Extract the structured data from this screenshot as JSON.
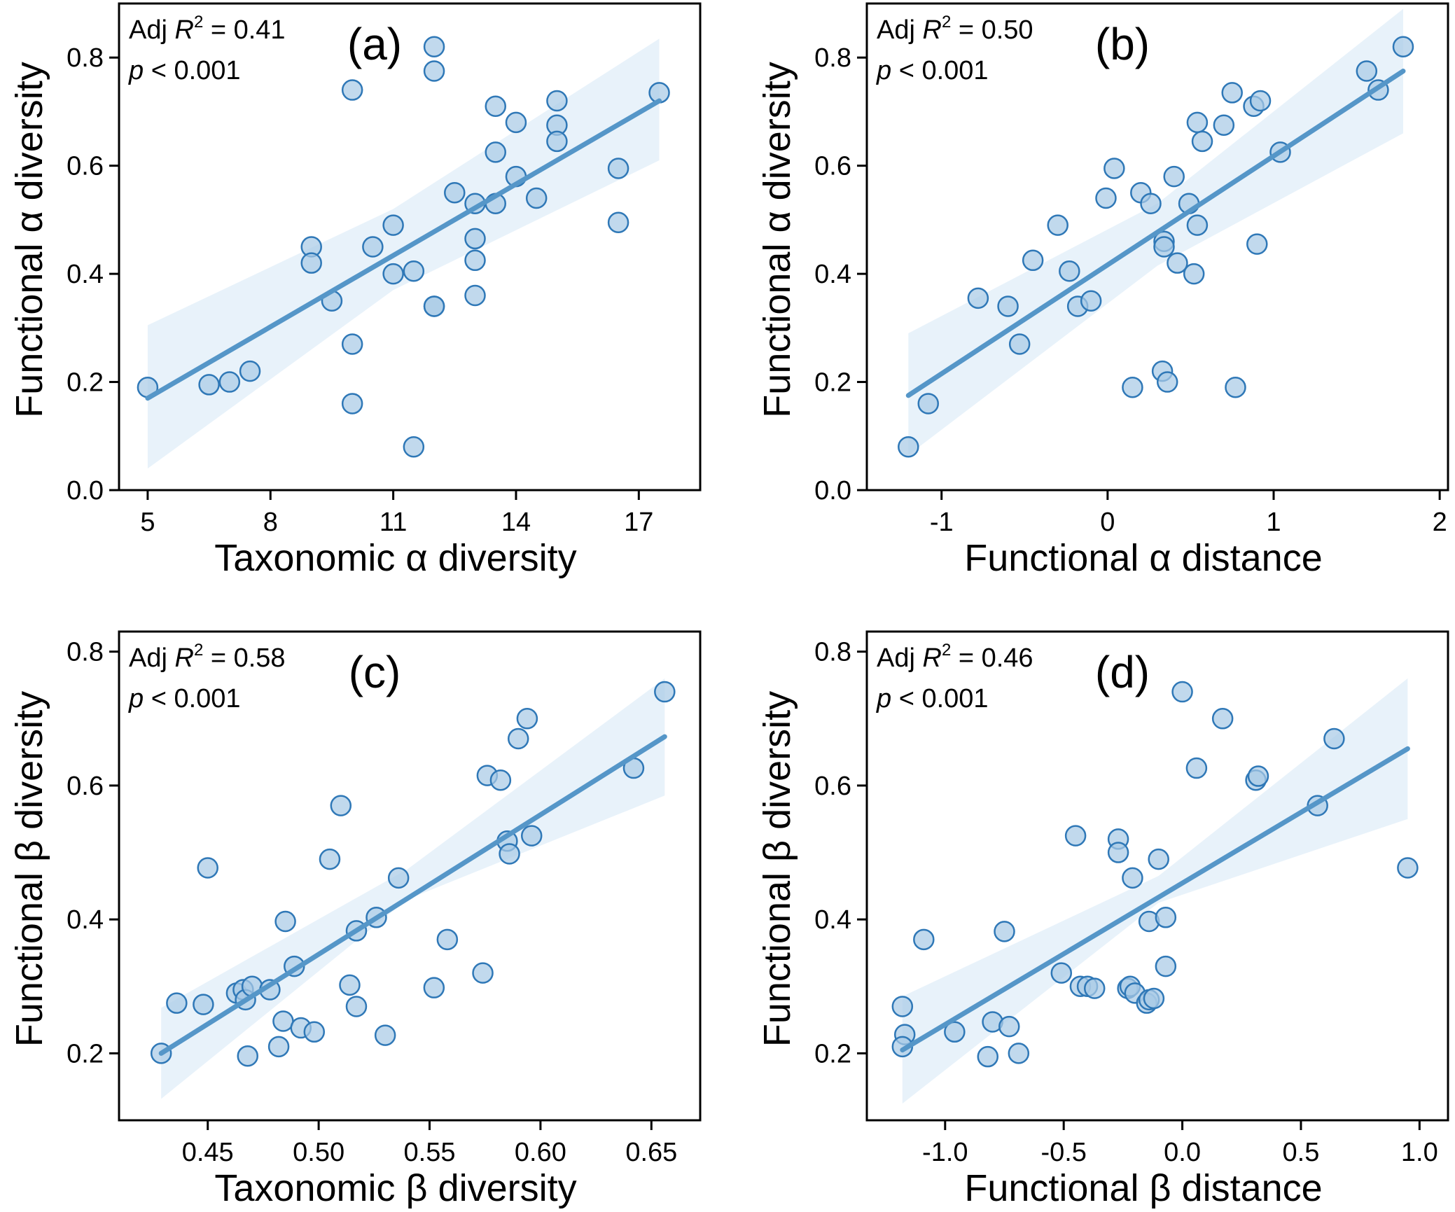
{
  "chart_data": [
    {
      "id": "a",
      "type": "scatter",
      "panel_label": "(a)",
      "xlabel": "Taxonomic α diversity",
      "ylabel": "Functional α diversity",
      "xlim": [
        4.3,
        18.5
      ],
      "ylim": [
        0.0,
        0.9
      ],
      "xticks": [
        5,
        8,
        11,
        14,
        17
      ],
      "xtick_labels": [
        "5",
        "8",
        "11",
        "14",
        "17"
      ],
      "yticks": [
        0.0,
        0.2,
        0.4,
        0.6,
        0.8
      ],
      "ytick_labels": [
        "0.0",
        "0.2",
        "0.4",
        "0.6",
        "0.8"
      ],
      "annotation": {
        "r2_prefix": "Adj ",
        "r2_symbol": "R",
        "r2_sup": "2",
        "r2_value": " = 0.41",
        "p_symbol": "p",
        "p_value": " < 0.001"
      },
      "fit": {
        "x": [
          5,
          17.5
        ],
        "y": [
          0.17,
          0.72
        ]
      },
      "ci": {
        "x": [
          5,
          11,
          17.5
        ],
        "upper": [
          0.305,
          0.52,
          0.835
        ],
        "lower": [
          0.04,
          0.37,
          0.61
        ]
      },
      "points": [
        {
          "x": 5.0,
          "y": 0.19
        },
        {
          "x": 6.5,
          "y": 0.195
        },
        {
          "x": 7.0,
          "y": 0.2
        },
        {
          "x": 7.5,
          "y": 0.22
        },
        {
          "x": 9.0,
          "y": 0.45
        },
        {
          "x": 9.0,
          "y": 0.42
        },
        {
          "x": 9.5,
          "y": 0.35
        },
        {
          "x": 10.0,
          "y": 0.74
        },
        {
          "x": 10.0,
          "y": 0.27
        },
        {
          "x": 10.0,
          "y": 0.16
        },
        {
          "x": 10.5,
          "y": 0.45
        },
        {
          "x": 11.0,
          "y": 0.49
        },
        {
          "x": 11.0,
          "y": 0.4
        },
        {
          "x": 11.5,
          "y": 0.405
        },
        {
          "x": 11.5,
          "y": 0.08
        },
        {
          "x": 12.0,
          "y": 0.82
        },
        {
          "x": 12.0,
          "y": 0.775
        },
        {
          "x": 12.0,
          "y": 0.34
        },
        {
          "x": 12.0,
          "y": 0.34
        },
        {
          "x": 12.5,
          "y": 0.55
        },
        {
          "x": 13.0,
          "y": 0.53
        },
        {
          "x": 13.0,
          "y": 0.465
        },
        {
          "x": 13.0,
          "y": 0.425
        },
        {
          "x": 13.0,
          "y": 0.36
        },
        {
          "x": 13.5,
          "y": 0.71
        },
        {
          "x": 13.5,
          "y": 0.625
        },
        {
          "x": 13.5,
          "y": 0.53
        },
        {
          "x": 14.0,
          "y": 0.68
        },
        {
          "x": 14.0,
          "y": 0.58
        },
        {
          "x": 14.5,
          "y": 0.54
        },
        {
          "x": 15.0,
          "y": 0.72
        },
        {
          "x": 15.0,
          "y": 0.675
        },
        {
          "x": 15.0,
          "y": 0.645
        },
        {
          "x": 16.5,
          "y": 0.595
        },
        {
          "x": 16.5,
          "y": 0.495
        },
        {
          "x": 17.5,
          "y": 0.735
        }
      ]
    },
    {
      "id": "b",
      "type": "scatter",
      "panel_label": "(b)",
      "xlabel": "Functional α distance",
      "ylabel": "Functional α diversity",
      "xlim": [
        -1.45,
        2.05
      ],
      "ylim": [
        0.0,
        0.9
      ],
      "xticks": [
        -1,
        0,
        1,
        2
      ],
      "xtick_labels": [
        "-1",
        "0",
        "1",
        "2"
      ],
      "yticks": [
        0.0,
        0.2,
        0.4,
        0.6,
        0.8
      ],
      "ytick_labels": [
        "0.0",
        "0.2",
        "0.4",
        "0.6",
        "0.8"
      ],
      "annotation": {
        "r2_prefix": "Adj ",
        "r2_symbol": "R",
        "r2_sup": "2",
        "r2_value": " = 0.50",
        "p_symbol": "p",
        "p_value": " < 0.001"
      },
      "fit": {
        "x": [
          -1.2,
          1.78
        ],
        "y": [
          0.175,
          0.775
        ]
      },
      "ci": {
        "x": [
          -1.2,
          0.3,
          1.78
        ],
        "upper": [
          0.29,
          0.53,
          0.89
        ],
        "lower": [
          0.065,
          0.415,
          0.66
        ]
      },
      "points": [
        {
          "x": -1.2,
          "y": 0.08
        },
        {
          "x": -1.08,
          "y": 0.16
        },
        {
          "x": -0.78,
          "y": 0.355
        },
        {
          "x": -0.6,
          "y": 0.34
        },
        {
          "x": -0.53,
          "y": 0.27
        },
        {
          "x": -0.45,
          "y": 0.425
        },
        {
          "x": -0.3,
          "y": 0.49
        },
        {
          "x": -0.23,
          "y": 0.405
        },
        {
          "x": -0.18,
          "y": 0.34
        },
        {
          "x": -0.1,
          "y": 0.35
        },
        {
          "x": -0.01,
          "y": 0.54
        },
        {
          "x": 0.04,
          "y": 0.595
        },
        {
          "x": 0.15,
          "y": 0.19
        },
        {
          "x": 0.2,
          "y": 0.55
        },
        {
          "x": 0.26,
          "y": 0.53
        },
        {
          "x": 0.33,
          "y": 0.22
        },
        {
          "x": 0.34,
          "y": 0.46
        },
        {
          "x": 0.34,
          "y": 0.45
        },
        {
          "x": 0.36,
          "y": 0.2
        },
        {
          "x": 0.4,
          "y": 0.58
        },
        {
          "x": 0.42,
          "y": 0.42
        },
        {
          "x": 0.49,
          "y": 0.53
        },
        {
          "x": 0.52,
          "y": 0.4
        },
        {
          "x": 0.54,
          "y": 0.68
        },
        {
          "x": 0.54,
          "y": 0.49
        },
        {
          "x": 0.57,
          "y": 0.645
        },
        {
          "x": 0.7,
          "y": 0.675
        },
        {
          "x": 0.75,
          "y": 0.735
        },
        {
          "x": 0.77,
          "y": 0.19
        },
        {
          "x": 0.88,
          "y": 0.71
        },
        {
          "x": 0.9,
          "y": 0.455
        },
        {
          "x": 0.92,
          "y": 0.72
        },
        {
          "x": 1.04,
          "y": 0.625
        },
        {
          "x": 1.56,
          "y": 0.775
        },
        {
          "x": 1.63,
          "y": 0.74
        },
        {
          "x": 1.78,
          "y": 0.82
        }
      ]
    },
    {
      "id": "c",
      "type": "scatter",
      "panel_label": "(c)",
      "xlabel": "Taxonomic β diversity",
      "ylabel": "Functional β diversity",
      "xlim": [
        0.41,
        0.672
      ],
      "ylim": [
        0.1,
        0.83
      ],
      "xticks": [
        0.45,
        0.5,
        0.55,
        0.6,
        0.65
      ],
      "xtick_labels": [
        "0.45",
        "0.50",
        "0.55",
        "0.60",
        "0.65"
      ],
      "yticks": [
        0.2,
        0.4,
        0.6,
        0.8
      ],
      "ytick_labels": [
        "0.2",
        "0.4",
        "0.6",
        "0.8"
      ],
      "annotation": {
        "r2_prefix": "Adj ",
        "r2_symbol": "R",
        "r2_sup": "2",
        "r2_value": " = 0.58",
        "p_symbol": "p",
        "p_value": " < 0.001"
      },
      "fit": {
        "x": [
          0.429,
          0.656
        ],
        "y": [
          0.2,
          0.673
        ]
      },
      "ci": {
        "x": [
          0.429,
          0.54,
          0.656
        ],
        "upper": [
          0.268,
          0.475,
          0.76
        ],
        "lower": [
          0.132,
          0.43,
          0.585
        ]
      },
      "points": [
        {
          "x": 0.429,
          "y": 0.2
        },
        {
          "x": 0.436,
          "y": 0.275
        },
        {
          "x": 0.448,
          "y": 0.273
        },
        {
          "x": 0.45,
          "y": 0.477
        },
        {
          "x": 0.463,
          "y": 0.29
        },
        {
          "x": 0.466,
          "y": 0.295
        },
        {
          "x": 0.467,
          "y": 0.28
        },
        {
          "x": 0.468,
          "y": 0.196
        },
        {
          "x": 0.47,
          "y": 0.3
        },
        {
          "x": 0.478,
          "y": 0.295
        },
        {
          "x": 0.482,
          "y": 0.21
        },
        {
          "x": 0.484,
          "y": 0.248
        },
        {
          "x": 0.485,
          "y": 0.397
        },
        {
          "x": 0.489,
          "y": 0.33
        },
        {
          "x": 0.492,
          "y": 0.238
        },
        {
          "x": 0.498,
          "y": 0.232
        },
        {
          "x": 0.505,
          "y": 0.49
        },
        {
          "x": 0.51,
          "y": 0.57
        },
        {
          "x": 0.514,
          "y": 0.302
        },
        {
          "x": 0.517,
          "y": 0.27
        },
        {
          "x": 0.517,
          "y": 0.383
        },
        {
          "x": 0.526,
          "y": 0.403
        },
        {
          "x": 0.53,
          "y": 0.227
        },
        {
          "x": 0.536,
          "y": 0.462
        },
        {
          "x": 0.552,
          "y": 0.298
        },
        {
          "x": 0.558,
          "y": 0.37
        },
        {
          "x": 0.574,
          "y": 0.32
        },
        {
          "x": 0.576,
          "y": 0.615
        },
        {
          "x": 0.582,
          "y": 0.608
        },
        {
          "x": 0.585,
          "y": 0.517
        },
        {
          "x": 0.586,
          "y": 0.498
        },
        {
          "x": 0.59,
          "y": 0.67
        },
        {
          "x": 0.594,
          "y": 0.7
        },
        {
          "x": 0.596,
          "y": 0.525
        },
        {
          "x": 0.642,
          "y": 0.626
        },
        {
          "x": 0.656,
          "y": 0.74
        }
      ]
    },
    {
      "id": "d",
      "type": "scatter",
      "panel_label": "(d)",
      "xlabel": "Functional β distance",
      "ylabel": "Functional β diversity",
      "xlim": [
        -1.33,
        1.12
      ],
      "ylim": [
        0.1,
        0.83
      ],
      "xticks": [
        -1.0,
        -0.5,
        0.0,
        0.5,
        1.0
      ],
      "xtick_labels": [
        "-1.0",
        "-0.5",
        "0.0",
        "0.5",
        "1.0"
      ],
      "yticks": [
        0.2,
        0.4,
        0.6,
        0.8
      ],
      "ytick_labels": [
        "0.2",
        "0.4",
        "0.6",
        "0.8"
      ],
      "annotation": {
        "r2_prefix": "Adj ",
        "r2_symbol": "R",
        "r2_sup": "2",
        "r2_value": " = 0.46",
        "p_symbol": "p",
        "p_value": " < 0.001"
      },
      "fit": {
        "x": [
          -1.18,
          0.95
        ],
        "y": [
          0.205,
          0.655
        ]
      },
      "ci": {
        "x": [
          -1.18,
          -0.1,
          0.95
        ],
        "upper": [
          0.285,
          0.465,
          0.76
        ],
        "lower": [
          0.125,
          0.425,
          0.55
        ]
      },
      "points": [
        {
          "x": -1.18,
          "y": 0.27
        },
        {
          "x": -1.17,
          "y": 0.228
        },
        {
          "x": -1.18,
          "y": 0.21
        },
        {
          "x": -1.09,
          "y": 0.37
        },
        {
          "x": -0.96,
          "y": 0.232
        },
        {
          "x": -0.82,
          "y": 0.195
        },
        {
          "x": -0.8,
          "y": 0.247
        },
        {
          "x": -0.75,
          "y": 0.382
        },
        {
          "x": -0.73,
          "y": 0.24
        },
        {
          "x": -0.69,
          "y": 0.2
        },
        {
          "x": -0.51,
          "y": 0.32
        },
        {
          "x": -0.45,
          "y": 0.525
        },
        {
          "x": -0.43,
          "y": 0.3
        },
        {
          "x": -0.4,
          "y": 0.3
        },
        {
          "x": -0.37,
          "y": 0.297
        },
        {
          "x": -0.27,
          "y": 0.52
        },
        {
          "x": -0.27,
          "y": 0.5
        },
        {
          "x": -0.23,
          "y": 0.297
        },
        {
          "x": -0.22,
          "y": 0.3
        },
        {
          "x": -0.21,
          "y": 0.462
        },
        {
          "x": -0.2,
          "y": 0.29
        },
        {
          "x": -0.15,
          "y": 0.275
        },
        {
          "x": -0.14,
          "y": 0.28
        },
        {
          "x": -0.14,
          "y": 0.397
        },
        {
          "x": -0.12,
          "y": 0.282
        },
        {
          "x": -0.1,
          "y": 0.49
        },
        {
          "x": -0.07,
          "y": 0.403
        },
        {
          "x": -0.07,
          "y": 0.33
        },
        {
          "x": 0.0,
          "y": 0.74
        },
        {
          "x": 0.06,
          "y": 0.626
        },
        {
          "x": 0.17,
          "y": 0.7
        },
        {
          "x": 0.31,
          "y": 0.608
        },
        {
          "x": 0.32,
          "y": 0.614
        },
        {
          "x": 0.57,
          "y": 0.57
        },
        {
          "x": 0.64,
          "y": 0.67
        },
        {
          "x": 0.95,
          "y": 0.477
        }
      ]
    }
  ]
}
